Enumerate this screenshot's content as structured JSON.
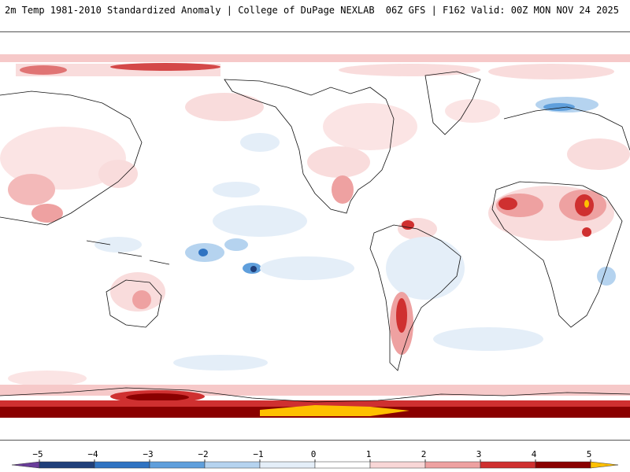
{
  "header": {
    "left_title": "2m Temp 1981-2010 Standardized Anomaly | College of DuPage NEXLAB",
    "right_title": "06Z GFS | F162 Valid: 00Z MON NOV 24 2025"
  },
  "colorbar": {
    "ticks": [
      {
        "label": "−5",
        "value": -5
      },
      {
        "label": "−4",
        "value": -4
      },
      {
        "label": "−3",
        "value": -3
      },
      {
        "label": "−2",
        "value": -2
      },
      {
        "label": "−1",
        "value": -1
      },
      {
        "label": "0",
        "value": 0
      },
      {
        "label": "1",
        "value": 1
      },
      {
        "label": "2",
        "value": 2
      },
      {
        "label": "3",
        "value": 3
      },
      {
        "label": "4",
        "value": 4
      },
      {
        "label": "5",
        "value": 5
      }
    ],
    "segments": [
      {
        "from": -5.5,
        "to": -5,
        "color": "#6a3d9a"
      },
      {
        "from": -5,
        "to": -4,
        "color": "#1f3f7a"
      },
      {
        "from": -4,
        "to": -3,
        "color": "#2f73c2"
      },
      {
        "from": -3,
        "to": -2,
        "color": "#5f9fdc"
      },
      {
        "from": -2,
        "to": -1,
        "color": "#b5d3ef"
      },
      {
        "from": -1,
        "to": 0,
        "color": "#e4eef8"
      },
      {
        "from": 0,
        "to": 1,
        "color": "#ffffff"
      },
      {
        "from": 1,
        "to": 2,
        "color": "#f8d6d6"
      },
      {
        "from": 2,
        "to": 3,
        "color": "#eea1a1"
      },
      {
        "from": 3,
        "to": 4,
        "color": "#cf3030"
      },
      {
        "from": 4,
        "to": 5,
        "color": "#8a0000"
      },
      {
        "from": 5,
        "to": 5.5,
        "color": "#ffc000"
      }
    ]
  },
  "colors": {
    "land_line": "#111111",
    "ocean": "#ffffff"
  }
}
